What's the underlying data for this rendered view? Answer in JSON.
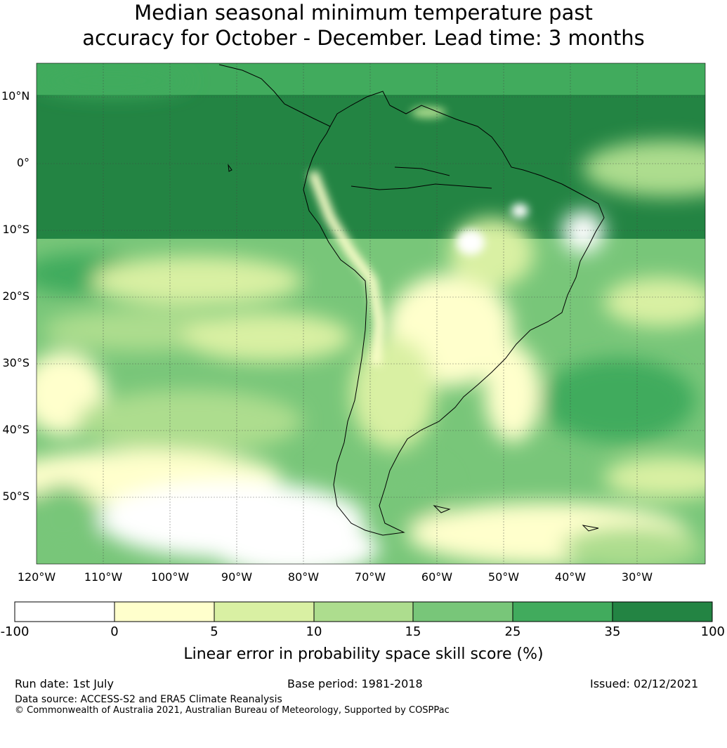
{
  "title": {
    "line1": "Median seasonal minimum temperature past",
    "line2": "accuracy for October - December. Lead time: 3 months"
  },
  "map": {
    "lat_labels": [
      "10°N",
      "0°",
      "10°S",
      "20°S",
      "30°S",
      "40°S",
      "50°S"
    ],
    "lon_labels": [
      "120°W",
      "110°W",
      "100°W",
      "90°W",
      "80°W",
      "70°W",
      "60°W",
      "50°W",
      "40°W",
      "30°W"
    ],
    "region": "South America",
    "extent": {
      "lon": [
        -120,
        -20
      ],
      "lat": [
        -60,
        15
      ]
    }
  },
  "colorbar": {
    "ticks": [
      "-100",
      "0",
      "5",
      "10",
      "15",
      "25",
      "35",
      "100"
    ],
    "colors": [
      "#ffffff",
      "#ffffcc",
      "#d9f0a3",
      "#addd8e",
      "#78c679",
      "#41ab5d",
      "#238443"
    ],
    "label": "Linear error in probability space skill score (%)"
  },
  "footer": {
    "run_date": "Run date: 1st July",
    "base_period": "Base period: 1981-2018",
    "issued": "Issued: 02/12/2021",
    "data_source": "Data source: ACCESS-S2 and ERA5 Climate Reanalysis",
    "copyright": "© Commonwealth of Australia 2021, Australian Bureau of Meteorology, Supported by COSPPac"
  }
}
